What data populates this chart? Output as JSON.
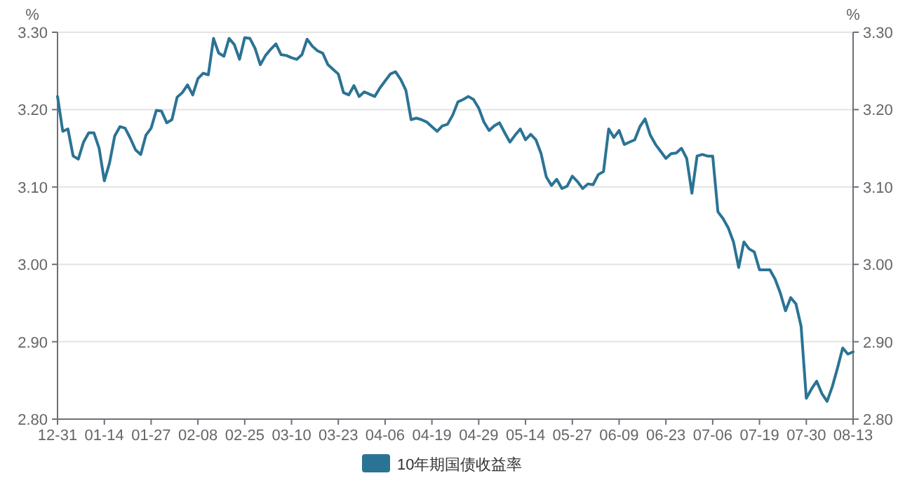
{
  "chart_data": {
    "type": "line",
    "ylabel": "%",
    "y2label": "%",
    "categories": [
      "12-31",
      null,
      null,
      null,
      null,
      null,
      null,
      null,
      null,
      "01-14",
      null,
      null,
      null,
      null,
      null,
      null,
      null,
      null,
      "01-27",
      null,
      null,
      null,
      null,
      null,
      null,
      null,
      null,
      "02-08",
      null,
      null,
      null,
      null,
      null,
      null,
      null,
      null,
      "02-25",
      null,
      null,
      null,
      null,
      null,
      null,
      null,
      null,
      "03-10",
      null,
      null,
      null,
      null,
      null,
      null,
      null,
      null,
      "03-23",
      null,
      null,
      null,
      null,
      null,
      null,
      null,
      null,
      "04-06",
      null,
      null,
      null,
      null,
      null,
      null,
      null,
      null,
      "04-19",
      null,
      null,
      null,
      null,
      null,
      null,
      null,
      null,
      "04-29",
      null,
      null,
      null,
      null,
      null,
      null,
      null,
      null,
      "05-14",
      null,
      null,
      null,
      null,
      null,
      null,
      null,
      null,
      "05-27",
      null,
      null,
      null,
      null,
      null,
      null,
      null,
      null,
      "06-09",
      null,
      null,
      null,
      null,
      null,
      null,
      null,
      null,
      "06-23",
      null,
      null,
      null,
      null,
      null,
      null,
      null,
      null,
      "07-06",
      null,
      null,
      null,
      null,
      null,
      null,
      null,
      null,
      "07-19",
      null,
      null,
      null,
      null,
      null,
      null,
      null,
      null,
      "07-30",
      null,
      null,
      null,
      null,
      null,
      null,
      null,
      null,
      "08-13"
    ],
    "series": [
      {
        "name": "10年期国债收益率",
        "color": "#2b7394",
        "values": [
          3.217,
          3.172,
          3.175,
          3.14,
          3.136,
          3.158,
          3.17,
          3.17,
          3.15,
          3.108,
          3.131,
          3.166,
          3.178,
          3.176,
          3.163,
          3.148,
          3.142,
          3.167,
          3.176,
          3.199,
          3.198,
          3.183,
          3.187,
          3.216,
          3.222,
          3.232,
          3.219,
          3.24,
          3.247,
          3.245,
          3.292,
          3.273,
          3.269,
          3.292,
          3.284,
          3.265,
          3.293,
          3.292,
          3.279,
          3.258,
          3.27,
          3.278,
          3.285,
          3.271,
          3.27,
          3.267,
          3.265,
          3.271,
          3.291,
          3.282,
          3.276,
          3.273,
          3.258,
          3.252,
          3.246,
          3.222,
          3.219,
          3.231,
          3.217,
          3.223,
          3.22,
          3.217,
          3.228,
          3.237,
          3.246,
          3.249,
          3.239,
          3.225,
          3.187,
          3.189,
          3.187,
          3.184,
          3.178,
          3.172,
          3.179,
          3.181,
          3.193,
          3.21,
          3.213,
          3.217,
          3.213,
          3.202,
          3.184,
          3.173,
          3.179,
          3.183,
          3.17,
          3.158,
          3.167,
          3.175,
          3.161,
          3.168,
          3.161,
          3.143,
          3.113,
          3.102,
          3.11,
          3.098,
          3.101,
          3.114,
          3.107,
          3.098,
          3.104,
          3.103,
          3.116,
          3.12,
          3.175,
          3.164,
          3.173,
          3.155,
          3.158,
          3.161,
          3.178,
          3.188,
          3.167,
          3.155,
          3.146,
          3.137,
          3.143,
          3.144,
          3.15,
          3.137,
          3.092,
          3.14,
          3.142,
          3.14,
          3.14,
          3.068,
          3.059,
          3.047,
          3.029,
          2.996,
          3.029,
          3.02,
          3.016,
          2.993,
          2.993,
          2.993,
          2.981,
          2.963,
          2.94,
          2.957,
          2.949,
          2.92,
          2.827,
          2.839,
          2.849,
          2.833,
          2.823,
          2.842,
          2.866,
          2.892,
          2.884,
          2.887
        ]
      }
    ],
    "ylim": [
      2.8,
      3.3
    ],
    "yticks": [
      {
        "value": 2.8,
        "label": "2.80"
      },
      {
        "value": 2.9,
        "label": "2.90"
      },
      {
        "value": 3.0,
        "label": "3.00"
      },
      {
        "value": 3.1,
        "label": "3.10"
      },
      {
        "value": 3.2,
        "label": "3.20"
      },
      {
        "value": 3.3,
        "label": "3.30"
      }
    ],
    "y2lim": [
      2.8,
      3.3
    ],
    "y2ticks": [
      {
        "value": 2.8,
        "label": "2.80"
      },
      {
        "value": 2.9,
        "label": "2.90"
      },
      {
        "value": 3.0,
        "label": "3.00"
      },
      {
        "value": 3.1,
        "label": "3.10"
      },
      {
        "value": 3.2,
        "label": "3.20"
      },
      {
        "value": 3.3,
        "label": "3.30"
      }
    ],
    "grid": "y",
    "legend": "bottom",
    "marker": "none",
    "line_style": "solid"
  }
}
